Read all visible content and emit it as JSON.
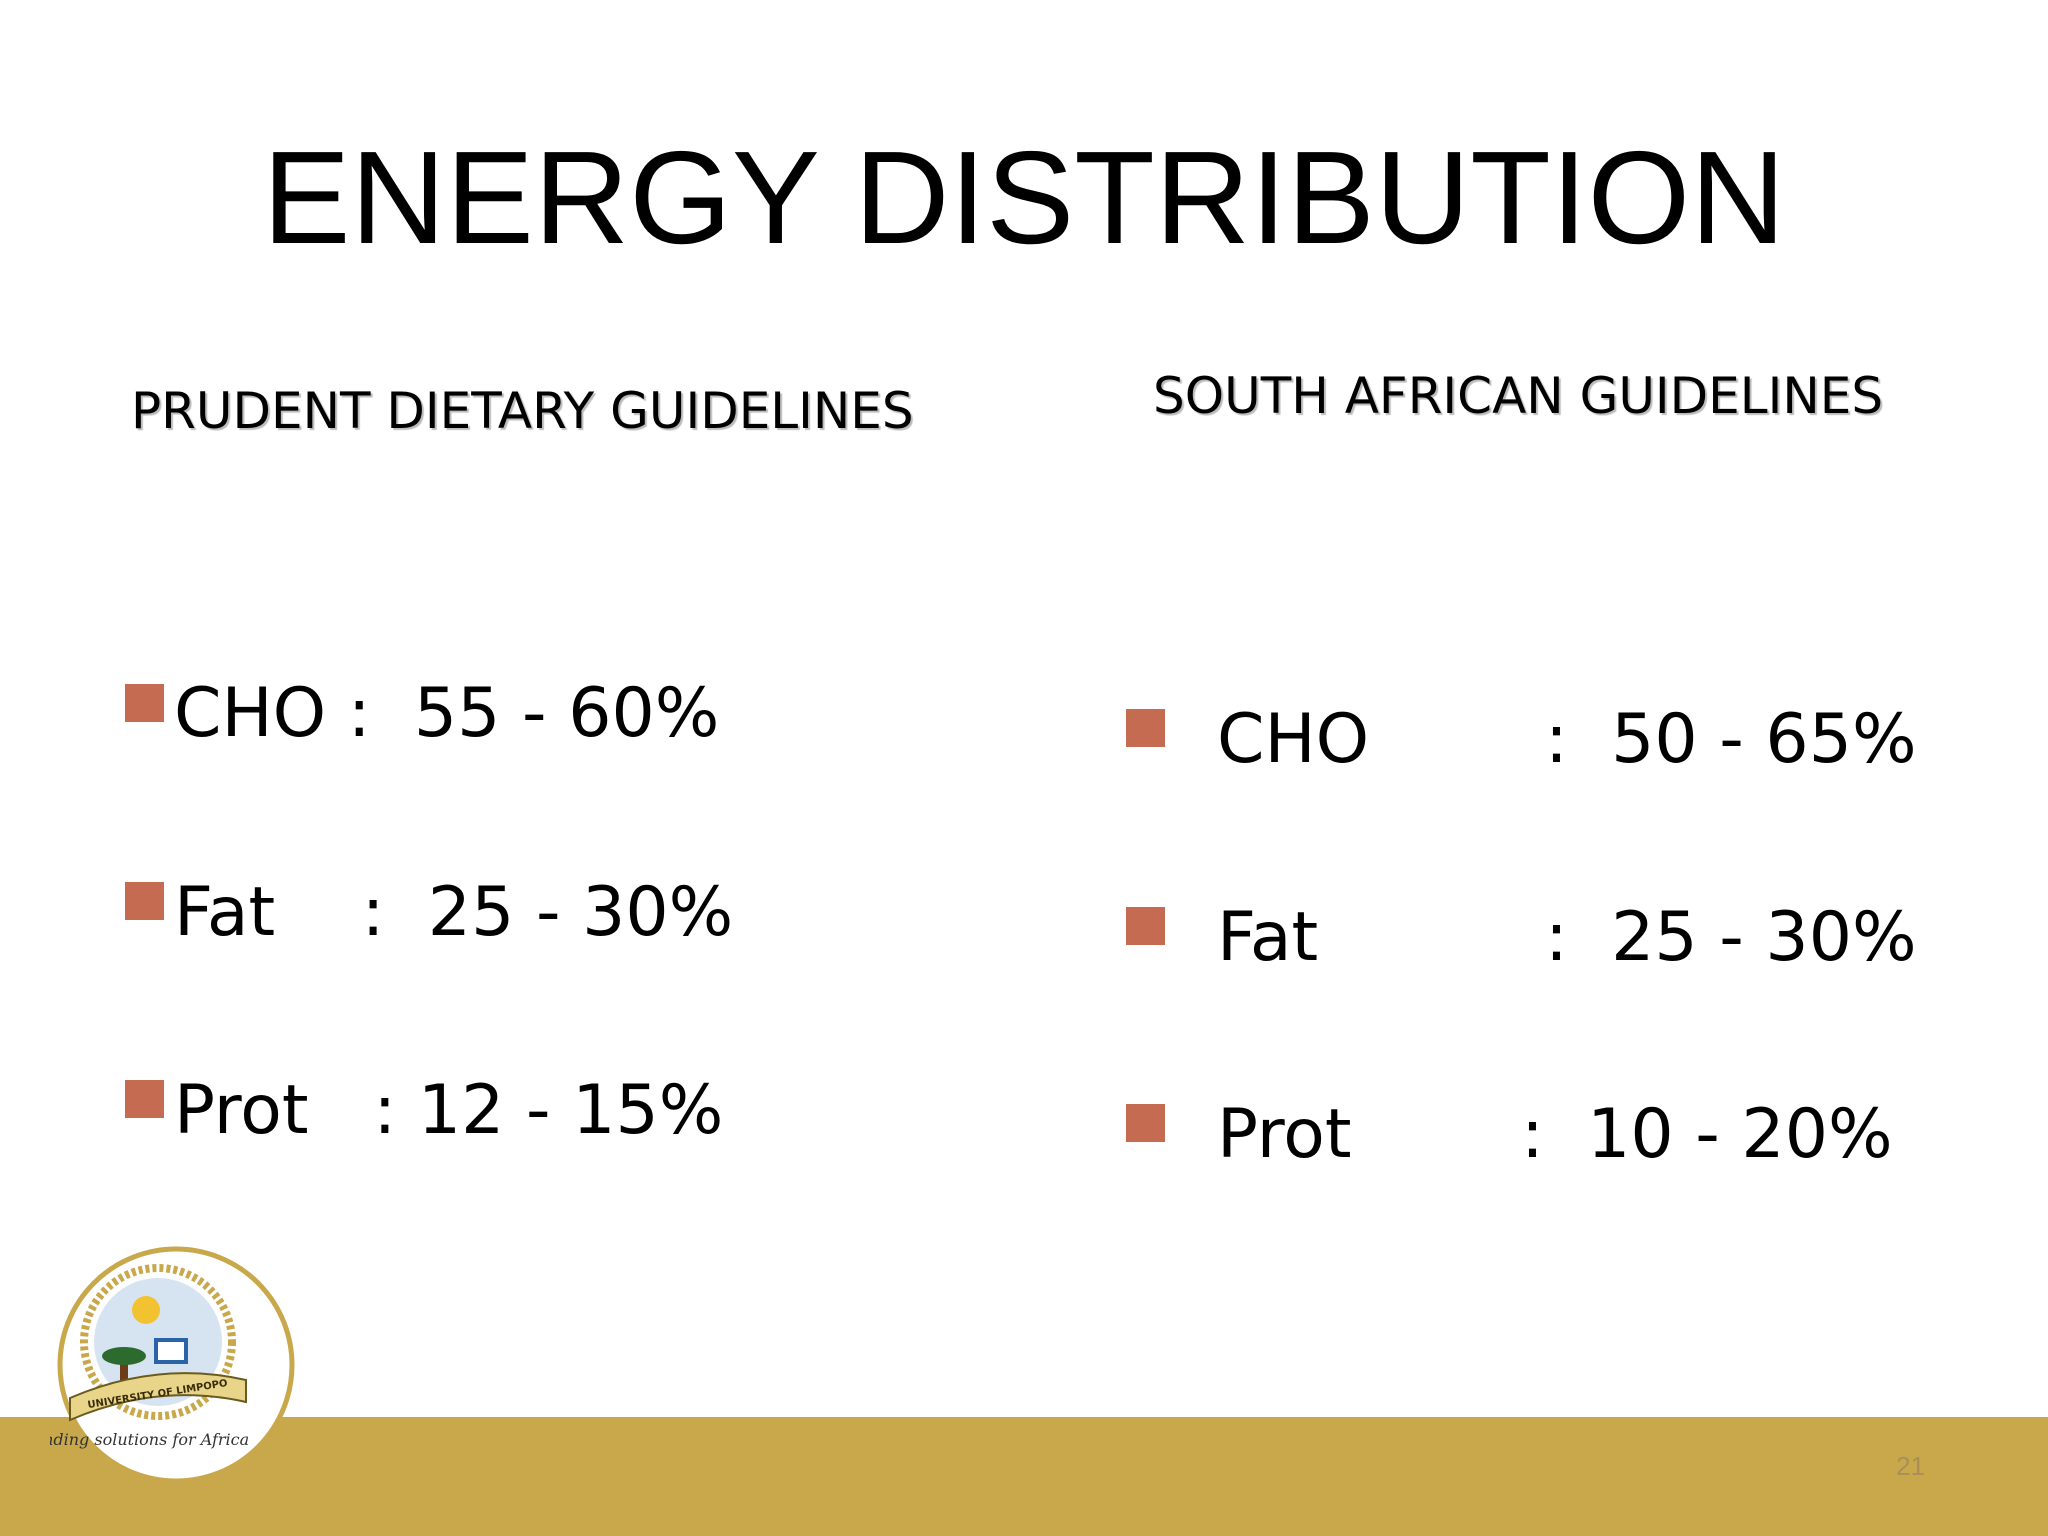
{
  "header": {
    "title": "ENERGY DISTRIBUTION"
  },
  "left": {
    "heading": "PRUDENT DIETARY GUIDELINES",
    "items": [
      "CHO :  55 - 60%",
      "Fat    :  25 - 30%",
      "Prot   : 12 - 15%"
    ]
  },
  "right": {
    "heading": "SOUTH AFRICAN GUIDELINES",
    "items": [
      {
        "label": "CHO",
        "value": ":  50 - 65%"
      },
      {
        "label": "Fat",
        "value": ":  25 - 30%"
      },
      {
        "label": "Prot",
        "value": ":  10 - 20%"
      }
    ]
  },
  "logo": {
    "name": "UNIVERSITY OF LIMPOPO",
    "motto": "Finding solutions for Africa"
  },
  "footer": {
    "page_number": "21"
  }
}
